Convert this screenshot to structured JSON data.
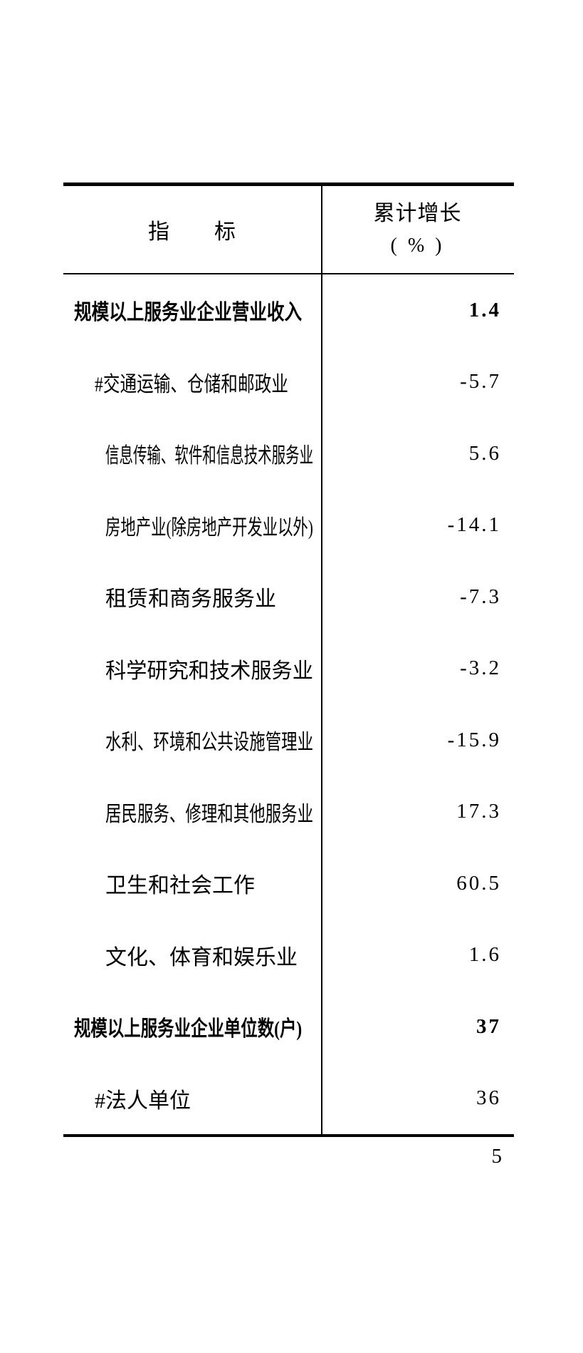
{
  "colors": {
    "text": "#000000",
    "background": "#ffffff",
    "rule": "#000000"
  },
  "page": {
    "number": "5"
  },
  "table": {
    "header": {
      "indicator": "指　　标",
      "growth_line1": "累计增长",
      "growth_line2": "( % )"
    },
    "rows": [
      {
        "label": "规模以上服务业企业营业收入",
        "value": "1.4",
        "level": 0,
        "bold": true
      },
      {
        "label": "#交通运输、仓储和邮政业",
        "value": "-5.7",
        "level": 1,
        "bold": false
      },
      {
        "label": "信息传输、软件和信息技术服务业",
        "value": "5.6",
        "level": 2,
        "bold": false
      },
      {
        "label": "房地产业(除房地产开发业以外)",
        "value": "-14.1",
        "level": 2,
        "bold": false
      },
      {
        "label": "租赁和商务服务业",
        "value": "-7.3",
        "level": 2,
        "bold": false
      },
      {
        "label": "科学研究和技术服务业",
        "value": "-3.2",
        "level": 2,
        "bold": false
      },
      {
        "label": "水利、环境和公共设施管理业",
        "value": "-15.9",
        "level": 2,
        "bold": false
      },
      {
        "label": "居民服务、修理和其他服务业",
        "value": "17.3",
        "level": 2,
        "bold": false
      },
      {
        "label": "卫生和社会工作",
        "value": "60.5",
        "level": 2,
        "bold": false
      },
      {
        "label": "文化、体育和娱乐业",
        "value": "1.6",
        "level": 2,
        "bold": false
      },
      {
        "label": "规模以上服务业企业单位数(户)",
        "value": "37",
        "level": 0,
        "bold": true
      },
      {
        "label": "#法人单位",
        "value": "36",
        "level": 1,
        "bold": false
      }
    ]
  }
}
